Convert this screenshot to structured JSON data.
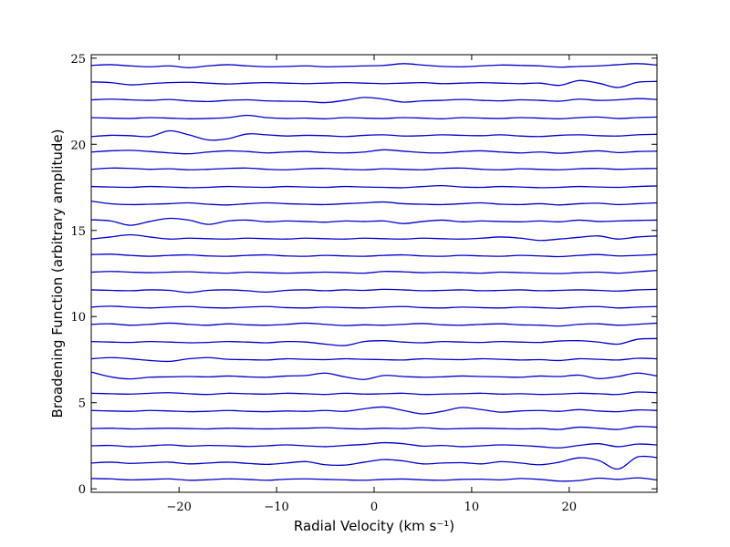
{
  "chart_data": {
    "type": "line",
    "title": "",
    "xlabel": "Radial Velocity (km s⁻¹)",
    "ylabel": "Broadening Function (arbitrary amplitude)",
    "xlim": [
      -29,
      29
    ],
    "ylim": [
      -0.2,
      25.2
    ],
    "xticks": [
      -20,
      -10,
      0,
      10,
      20
    ],
    "xtick_labels": [
      "−20",
      "−10",
      "0",
      "10",
      "20"
    ],
    "yticks": [
      0,
      5,
      10,
      15,
      20,
      25
    ],
    "ytick_labels": [
      "0",
      "5",
      "10",
      "15",
      "20",
      "25"
    ],
    "grid": false,
    "line_color": "#0000cc",
    "x": [
      -29,
      -27,
      -25,
      -23,
      -21,
      -19,
      -17,
      -15,
      -13,
      -11,
      -9,
      -7,
      -5,
      -3,
      -1,
      1,
      3,
      5,
      7,
      9,
      11,
      13,
      15,
      17,
      19,
      21,
      23,
      25,
      27,
      29
    ],
    "series": [
      {
        "values": [
          0.6,
          0.58,
          0.52,
          0.55,
          0.58,
          0.5,
          0.53,
          0.58,
          0.55,
          0.5,
          0.56,
          0.58,
          0.55,
          0.52,
          0.5,
          0.55,
          0.57,
          0.52,
          0.5,
          0.55,
          0.56,
          0.52,
          0.6,
          0.55,
          0.45,
          0.48,
          0.62,
          0.55,
          0.64,
          0.52
        ]
      },
      {
        "values": [
          1.5,
          1.55,
          1.48,
          1.52,
          1.55,
          1.45,
          1.5,
          1.55,
          1.48,
          1.42,
          1.5,
          1.58,
          1.4,
          1.38,
          1.55,
          1.7,
          1.62,
          1.45,
          1.5,
          1.52,
          1.45,
          1.58,
          1.5,
          1.4,
          1.55,
          1.8,
          1.65,
          1.15,
          1.85,
          1.82
        ]
      },
      {
        "values": [
          2.5,
          2.52,
          2.45,
          2.5,
          2.55,
          2.48,
          2.52,
          2.5,
          2.46,
          2.5,
          2.55,
          2.5,
          2.45,
          2.52,
          2.58,
          2.68,
          2.62,
          2.48,
          2.52,
          2.45,
          2.5,
          2.55,
          2.52,
          2.45,
          2.38,
          2.52,
          2.62,
          2.45,
          2.6,
          2.55
        ]
      },
      {
        "values": [
          3.5,
          3.52,
          3.48,
          3.5,
          3.52,
          3.5,
          3.48,
          3.52,
          3.5,
          3.48,
          3.5,
          3.52,
          3.55,
          3.5,
          3.48,
          3.52,
          3.5,
          3.55,
          3.48,
          3.5,
          3.52,
          3.5,
          3.48,
          3.5,
          3.45,
          3.58,
          3.52,
          3.45,
          3.62,
          3.58
        ]
      },
      {
        "values": [
          4.55,
          4.52,
          4.5,
          4.55,
          4.52,
          4.48,
          4.5,
          4.55,
          4.5,
          4.48,
          4.52,
          4.5,
          4.55,
          4.5,
          4.65,
          4.75,
          4.55,
          4.35,
          4.5,
          4.72,
          4.6,
          4.45,
          4.52,
          4.55,
          4.5,
          4.6,
          4.52,
          4.48,
          4.58,
          4.55
        ]
      },
      {
        "values": [
          5.55,
          5.52,
          5.5,
          5.55,
          5.58,
          5.52,
          5.48,
          5.55,
          5.52,
          5.5,
          5.55,
          5.52,
          5.48,
          5.55,
          5.5,
          5.52,
          5.55,
          5.48,
          5.5,
          5.52,
          5.55,
          5.5,
          5.52,
          5.48,
          5.5,
          5.55,
          5.52,
          5.48,
          5.62,
          5.58
        ]
      },
      {
        "values": [
          6.78,
          6.5,
          6.38,
          6.48,
          6.5,
          6.52,
          6.5,
          6.55,
          6.5,
          6.48,
          6.55,
          6.58,
          6.72,
          6.5,
          6.35,
          6.58,
          6.52,
          6.48,
          6.5,
          6.55,
          6.52,
          6.5,
          6.48,
          6.55,
          6.52,
          6.6,
          6.4,
          6.52,
          6.72,
          6.55
        ]
      },
      {
        "values": [
          7.55,
          7.62,
          7.55,
          7.45,
          7.4,
          7.55,
          7.62,
          7.52,
          7.5,
          7.48,
          7.55,
          7.52,
          7.5,
          7.55,
          7.52,
          7.5,
          7.48,
          7.55,
          7.52,
          7.5,
          7.55,
          7.52,
          7.48,
          7.5,
          7.45,
          7.55,
          7.52,
          7.48,
          7.58,
          7.55
        ]
      },
      {
        "values": [
          8.55,
          8.52,
          8.5,
          8.55,
          8.52,
          8.48,
          8.5,
          8.55,
          8.52,
          8.48,
          8.55,
          8.52,
          8.4,
          8.32,
          8.55,
          8.6,
          8.52,
          8.48,
          8.55,
          8.52,
          8.5,
          8.55,
          8.52,
          8.5,
          8.58,
          8.6,
          8.52,
          8.4,
          8.68,
          8.72
        ]
      },
      {
        "values": [
          9.55,
          9.58,
          9.5,
          9.55,
          9.62,
          9.55,
          9.5,
          9.58,
          9.52,
          9.5,
          9.55,
          9.62,
          9.55,
          9.48,
          9.52,
          9.5,
          9.55,
          9.6,
          9.52,
          9.5,
          9.55,
          9.58,
          9.52,
          9.5,
          9.45,
          9.55,
          9.58,
          9.5,
          9.55,
          9.62
        ]
      },
      {
        "values": [
          10.55,
          10.6,
          10.55,
          10.5,
          10.55,
          10.58,
          10.52,
          10.5,
          10.55,
          10.58,
          10.52,
          10.5,
          10.55,
          10.52,
          10.5,
          10.55,
          10.58,
          10.52,
          10.5,
          10.55,
          10.52,
          10.5,
          10.55,
          10.52,
          10.48,
          10.55,
          10.58,
          10.5,
          10.55,
          10.58
        ]
      },
      {
        "values": [
          11.55,
          11.52,
          11.5,
          11.55,
          11.52,
          11.4,
          11.52,
          11.55,
          11.5,
          11.42,
          11.52,
          11.55,
          11.5,
          11.55,
          11.52,
          11.58,
          11.55,
          11.5,
          11.52,
          11.55,
          11.5,
          11.52,
          11.55,
          11.5,
          11.52,
          11.55,
          11.52,
          11.48,
          11.55,
          11.58
        ]
      },
      {
        "values": [
          12.58,
          12.62,
          12.58,
          12.55,
          12.58,
          12.6,
          12.55,
          12.52,
          12.58,
          12.55,
          12.52,
          12.55,
          12.58,
          12.55,
          12.52,
          12.62,
          12.6,
          12.55,
          12.58,
          12.55,
          12.52,
          12.58,
          12.55,
          12.52,
          12.5,
          12.55,
          12.58,
          12.52,
          12.6,
          12.68
        ]
      },
      {
        "values": [
          13.6,
          13.62,
          13.55,
          13.5,
          13.55,
          13.58,
          13.52,
          13.5,
          13.55,
          13.58,
          13.52,
          13.5,
          13.55,
          13.52,
          13.5,
          13.55,
          13.58,
          13.52,
          13.5,
          13.55,
          13.52,
          13.5,
          13.55,
          13.52,
          13.48,
          13.55,
          13.6,
          13.52,
          13.55,
          13.6
        ]
      },
      {
        "values": [
          14.5,
          14.62,
          14.75,
          14.62,
          14.5,
          14.55,
          14.52,
          14.5,
          14.55,
          14.52,
          14.5,
          14.55,
          14.52,
          14.5,
          14.55,
          14.52,
          14.5,
          14.55,
          14.52,
          14.5,
          14.55,
          14.62,
          14.55,
          14.42,
          14.5,
          14.6,
          14.68,
          14.5,
          14.62,
          14.68
        ]
      },
      {
        "values": [
          15.62,
          15.55,
          15.3,
          15.52,
          15.7,
          15.6,
          15.35,
          15.55,
          15.6,
          15.5,
          15.55,
          15.52,
          15.48,
          15.55,
          15.52,
          15.55,
          15.4,
          15.52,
          15.6,
          15.5,
          15.55,
          15.52,
          15.5,
          15.55,
          15.5,
          15.6,
          15.52,
          15.55,
          15.58,
          15.6
        ]
      },
      {
        "values": [
          16.7,
          16.55,
          16.5,
          16.52,
          16.55,
          16.6,
          16.52,
          16.48,
          16.55,
          16.6,
          16.55,
          16.52,
          16.5,
          16.55,
          16.6,
          16.65,
          16.55,
          16.52,
          16.5,
          16.55,
          16.6,
          16.52,
          16.5,
          16.55,
          16.48,
          16.55,
          16.58,
          16.5,
          16.55,
          16.6
        ]
      },
      {
        "values": [
          17.55,
          17.52,
          17.5,
          17.55,
          17.52,
          17.48,
          17.5,
          17.55,
          17.52,
          17.5,
          17.55,
          17.52,
          17.5,
          17.55,
          17.52,
          17.5,
          17.48,
          17.55,
          17.6,
          17.52,
          17.5,
          17.55,
          17.52,
          17.48,
          17.5,
          17.55,
          17.52,
          17.5,
          17.55,
          17.58
        ]
      },
      {
        "values": [
          18.55,
          18.62,
          18.6,
          18.55,
          18.58,
          18.52,
          18.55,
          18.6,
          18.62,
          18.55,
          18.52,
          18.58,
          18.6,
          18.55,
          18.52,
          18.58,
          18.55,
          18.52,
          18.6,
          18.62,
          18.55,
          18.52,
          18.58,
          18.55,
          18.52,
          18.58,
          18.6,
          18.55,
          18.58,
          18.6
        ]
      },
      {
        "values": [
          19.55,
          19.62,
          19.65,
          19.58,
          19.5,
          19.45,
          19.55,
          19.62,
          19.58,
          19.5,
          19.55,
          19.58,
          19.52,
          19.5,
          19.55,
          19.68,
          19.6,
          19.52,
          19.5,
          19.58,
          19.62,
          19.55,
          19.5,
          19.55,
          19.48,
          19.55,
          19.62,
          19.52,
          19.58,
          19.6
        ]
      },
      {
        "values": [
          20.45,
          20.52,
          20.5,
          20.45,
          20.78,
          20.55,
          20.25,
          20.32,
          20.6,
          20.55,
          20.48,
          20.52,
          20.5,
          20.45,
          20.52,
          20.55,
          20.48,
          20.5,
          20.55,
          20.52,
          20.5,
          20.55,
          20.48,
          20.45,
          20.52,
          20.55,
          20.5,
          20.48,
          20.55,
          20.58
        ]
      },
      {
        "values": [
          21.55,
          21.52,
          21.5,
          21.55,
          21.52,
          21.48,
          21.5,
          21.55,
          21.68,
          21.55,
          21.5,
          21.52,
          21.48,
          21.55,
          21.52,
          21.5,
          21.55,
          21.52,
          21.48,
          21.55,
          21.52,
          21.5,
          21.55,
          21.52,
          21.48,
          21.55,
          21.58,
          21.5,
          21.55,
          21.58
        ]
      },
      {
        "values": [
          22.58,
          22.62,
          22.58,
          22.55,
          22.6,
          22.52,
          22.48,
          22.55,
          22.58,
          22.52,
          22.5,
          22.48,
          22.42,
          22.55,
          22.72,
          22.62,
          22.45,
          22.52,
          22.55,
          22.6,
          22.55,
          22.52,
          22.58,
          22.55,
          22.5,
          22.62,
          22.55,
          22.58,
          22.65,
          22.6
        ]
      },
      {
        "values": [
          23.62,
          23.58,
          23.45,
          23.52,
          23.58,
          23.6,
          23.55,
          23.5,
          23.55,
          23.58,
          23.55,
          23.52,
          23.55,
          23.58,
          23.55,
          23.52,
          23.55,
          23.58,
          23.52,
          23.55,
          23.58,
          23.55,
          23.52,
          23.55,
          23.42,
          23.7,
          23.55,
          23.3,
          23.6,
          23.65
        ]
      },
      {
        "values": [
          24.58,
          24.62,
          24.55,
          24.5,
          24.55,
          24.45,
          24.55,
          24.62,
          24.55,
          24.5,
          24.52,
          24.55,
          24.5,
          24.52,
          24.55,
          24.58,
          24.68,
          24.6,
          24.52,
          24.5,
          24.55,
          24.6,
          24.58,
          24.55,
          24.48,
          24.52,
          24.55,
          24.62,
          24.68,
          24.6
        ]
      }
    ]
  }
}
